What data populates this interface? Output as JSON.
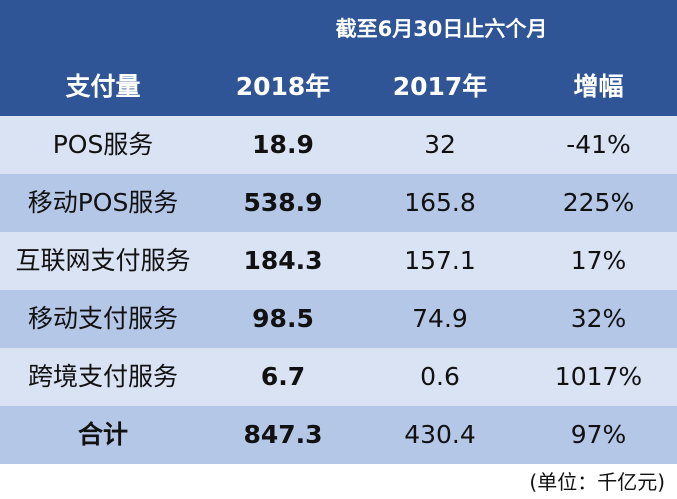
{
  "header": {
    "period": "截至6月30日止六个月",
    "columns": [
      "支付量",
      "2018年",
      "2017年",
      "增幅"
    ]
  },
  "table": {
    "rows": [
      [
        "POS服务",
        "18.9",
        "32",
        "-41%"
      ],
      [
        "移动POS服务",
        "538.9",
        "165.8",
        "225%"
      ],
      [
        "互联网支付服务",
        "184.3",
        "157.1",
        "17%"
      ],
      [
        "移动支付服务",
        "98.5",
        "74.9",
        "32%"
      ],
      [
        "跨境支付服务",
        "6.7",
        "0.6",
        "1017%"
      ],
      [
        "合计",
        "847.3",
        "430.4",
        "97%"
      ]
    ]
  },
  "footer": {
    "unit": "(单位：千亿元)"
  }
}
